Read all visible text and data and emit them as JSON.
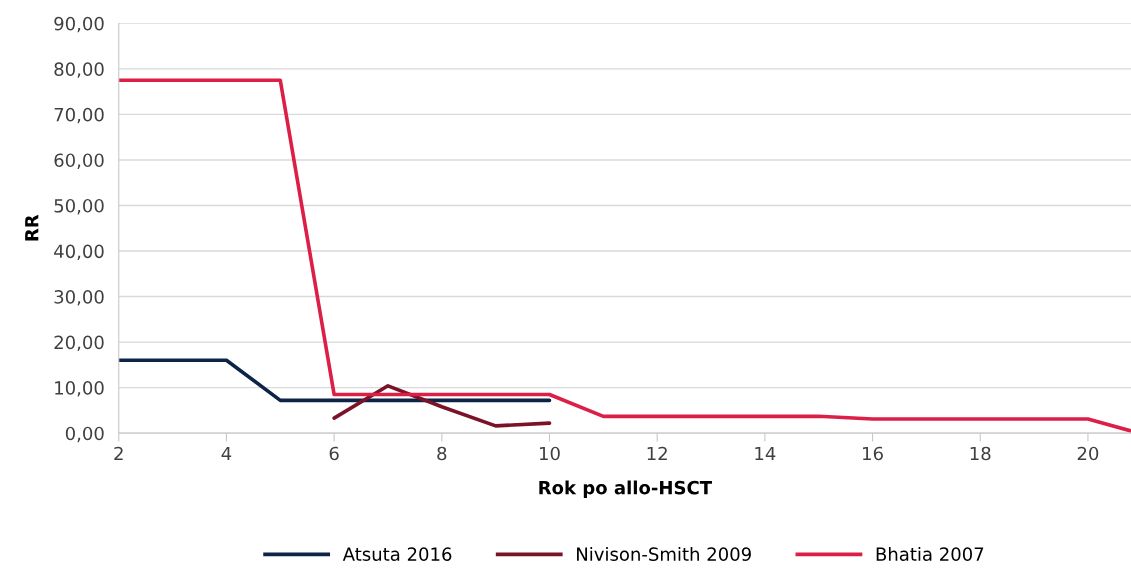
{
  "chart_data": {
    "type": "line",
    "xlabel": "Rok po allo-HSCT",
    "ylabel": "RR",
    "xlim": [
      2,
      20.8
    ],
    "xticks": [
      2,
      4,
      6,
      8,
      10,
      12,
      14,
      16,
      18,
      20
    ],
    "ylim": [
      0,
      90
    ],
    "yticks": [
      {
        "value": 0,
        "label": "0,00"
      },
      {
        "value": 10,
        "label": "10,00"
      },
      {
        "value": 20,
        "label": "20,00"
      },
      {
        "value": 30,
        "label": "30,00"
      },
      {
        "value": 40,
        "label": "40,00"
      },
      {
        "value": 50,
        "label": "50,00"
      },
      {
        "value": 60,
        "label": "60,00"
      },
      {
        "value": 70,
        "label": "70,00"
      },
      {
        "value": 80,
        "label": "80,00"
      },
      {
        "value": 90,
        "label": "90,00"
      }
    ],
    "grid": "y",
    "legend": "bottom",
    "marker": "none",
    "line_style": "solid",
    "series": [
      {
        "name": "Atsuta 2016",
        "color": "#0d2447",
        "x": [
          2,
          3,
          4,
          5,
          6,
          7,
          8,
          9,
          10
        ],
        "values": [
          16,
          16,
          16,
          7.2,
          7.2,
          7.2,
          7.2,
          7.2,
          7.2
        ]
      },
      {
        "name": "Nivison-Smith 2009",
        "color": "#7a1228",
        "x": [
          6,
          7,
          8,
          9,
          10
        ],
        "values": [
          3.3,
          10.4,
          5.8,
          1.6,
          2.2
        ]
      },
      {
        "name": "Bhatia 2007",
        "color": "#dc1f47",
        "x": [
          2,
          3,
          4,
          5,
          6,
          7,
          8,
          9,
          10,
          11,
          12,
          13,
          14,
          15,
          16,
          17,
          18,
          19,
          20,
          20.8
        ],
        "values": [
          77.5,
          77.5,
          77.5,
          77.5,
          8.5,
          8.5,
          8.5,
          8.5,
          8.5,
          3.7,
          3.7,
          3.7,
          3.7,
          3.7,
          3.1,
          3.1,
          3.1,
          3.1,
          3.1,
          0.5
        ]
      }
    ]
  }
}
